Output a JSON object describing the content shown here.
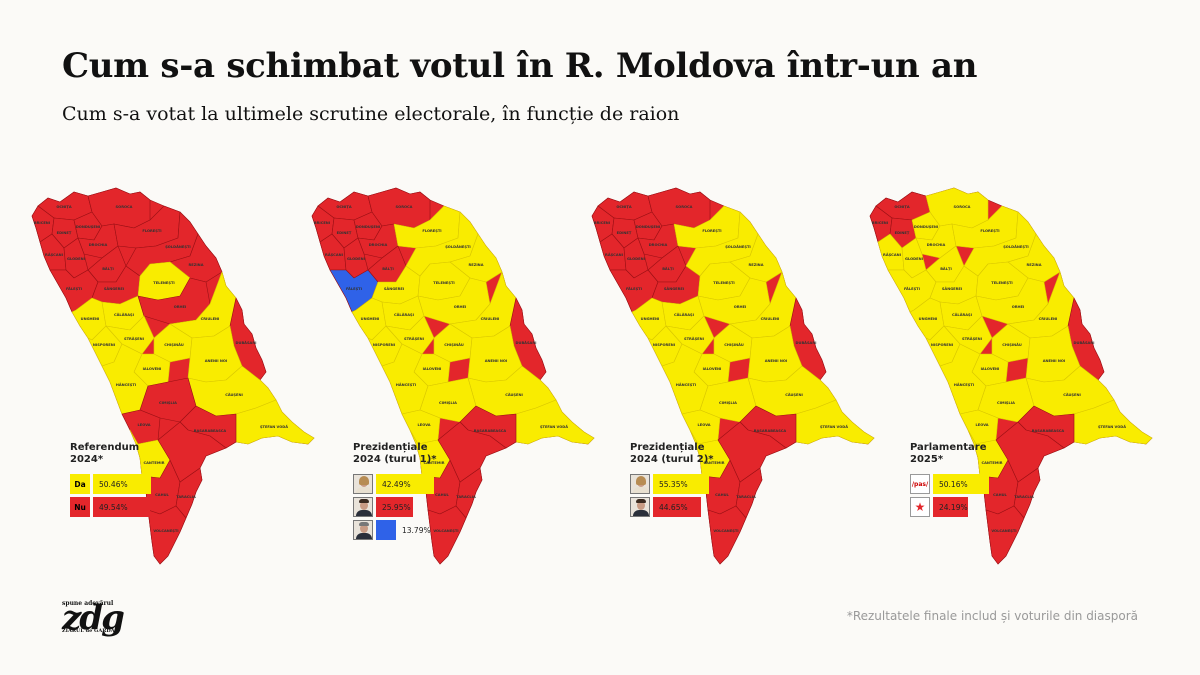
{
  "header": {
    "title": "Cum s-a schimbat votul în R. Moldova într-un an",
    "subtitle": "Cum s-a votat la ultimele scrutine electorale, în funcție de raion"
  },
  "colors": {
    "yellow": "#f9ec00",
    "red": "#e3262b",
    "blue": "#2f62e8",
    "border": "#9a1015",
    "background": "#fbfaf7"
  },
  "maps": [
    {
      "id": "referendum",
      "legend_title_line1": "Referendum",
      "legend_title_line2": "2024*",
      "rows": [
        {
          "label": "Da",
          "value": "50.46%",
          "color": "yellow"
        },
        {
          "label": "Nu",
          "value": "49.54%",
          "color": "red"
        }
      ]
    },
    {
      "id": "prezidentiale-turul-1",
      "legend_title_line1": "Prezidențiale",
      "legend_title_line2": "2024 (turul 1)*",
      "rows": [
        {
          "label": "",
          "value": "42.49%",
          "color": "yellow"
        },
        {
          "label": "",
          "value": "25.95%",
          "color": "red"
        },
        {
          "label": "",
          "value": "13.79%",
          "color": "blue"
        }
      ]
    },
    {
      "id": "prezidentiale-turul-2",
      "legend_title_line1": "Prezidențiale",
      "legend_title_line2": "2024 (turul 2)*",
      "rows": [
        {
          "label": "",
          "value": "55.35%",
          "color": "yellow"
        },
        {
          "label": "",
          "value": "44.65%",
          "color": "red"
        }
      ]
    },
    {
      "id": "parlamentare-2025",
      "legend_title_line1": "Parlamentare",
      "legend_title_line2": "2025*",
      "rows": [
        {
          "label": "/pas/",
          "value": "50.16%",
          "color": "yellow"
        },
        {
          "label": "",
          "value": "24.19%",
          "color": "red"
        }
      ]
    }
  ],
  "district_labels": [
    "OCNIȚA",
    "BRICENI",
    "EDINEȚ",
    "DONDUȘENI",
    "SOROCA",
    "RÂȘCANI",
    "DROCHIA",
    "FLOREȘTI",
    "GLODENI",
    "SÂNGEREI",
    "FĂLEȘTI",
    "BĂLȚI",
    "REZINA",
    "ȘOLDĂNEȘTI",
    "TELENEȘTI",
    "ORHEI",
    "UNGHENI",
    "CĂLĂRAȘI",
    "NISPORENI",
    "STRĂȘENI",
    "CRIULENI",
    "HÂNCEȘTI",
    "CHIȘINĂU",
    "IALOVENI",
    "ANENII NOI",
    "CĂUȘENI",
    "ȘTEFAN VODĂ",
    "CIMIȘLIA",
    "LEOVA",
    "BASARABEASCA",
    "CANTEMIR",
    "CAHUL",
    "TARACLIA",
    "VOLCANEȘTI",
    "DUBĂSARI"
  ],
  "district_results": {
    "referendum": {
      "yellow": [
        "TELENEȘTI",
        "CĂLĂRAȘI",
        "UNGHENI",
        "NISPORENI",
        "STRĂȘENI",
        "IALOVENI",
        "HÂNCEȘTI",
        "CHIȘINĂU",
        "CRIULENI",
        "ANENII NOI",
        "CĂUȘENI",
        "ȘTEFAN VODĂ",
        "CANTEMIR"
      ],
      "blue": []
    },
    "prezidentiale-turul-1": {
      "red_only": [
        "OCNIȚA",
        "BRICENI",
        "EDINEȚ",
        "DONDUȘENI",
        "SOROCA",
        "RÂȘCANI",
        "DROCHIA",
        "GLODENI",
        "BĂLȚI",
        "CAHUL",
        "TARACLIA",
        "VOLCANEȘTI",
        "DUBĂSARI",
        "BASARABEASCA"
      ],
      "blue": [
        "FĂLEȘTI"
      ]
    },
    "prezidentiale-turul-2": {
      "red_only": [
        "OCNIȚA",
        "BRICENI",
        "EDINEȚ",
        "DONDUȘENI",
        "SOROCA",
        "RÂȘCANI",
        "DROCHIA",
        "GLODENI",
        "BĂLȚI",
        "FĂLEȘTI",
        "SÂNGEREI",
        "CAHUL",
        "TARACLIA",
        "VOLCANEȘTI",
        "DUBĂSARI",
        "BASARABEASCA"
      ],
      "blue": []
    },
    "parlamentare-2025": {
      "red_only": [
        "OCNIȚA",
        "BRICENI",
        "EDINEȚ",
        "DUBĂSARI",
        "CAHUL",
        "TARACLIA",
        "VOLCANEȘTI",
        "BASARABEASCA"
      ],
      "blue": []
    }
  },
  "branding": {
    "logo_text": "zdg",
    "logo_small": "spune adevărul",
    "logo_tag": "ZIARUL de GARDĂ"
  },
  "footnote": "*Rezultatele finale includ și voturile din diasporă"
}
